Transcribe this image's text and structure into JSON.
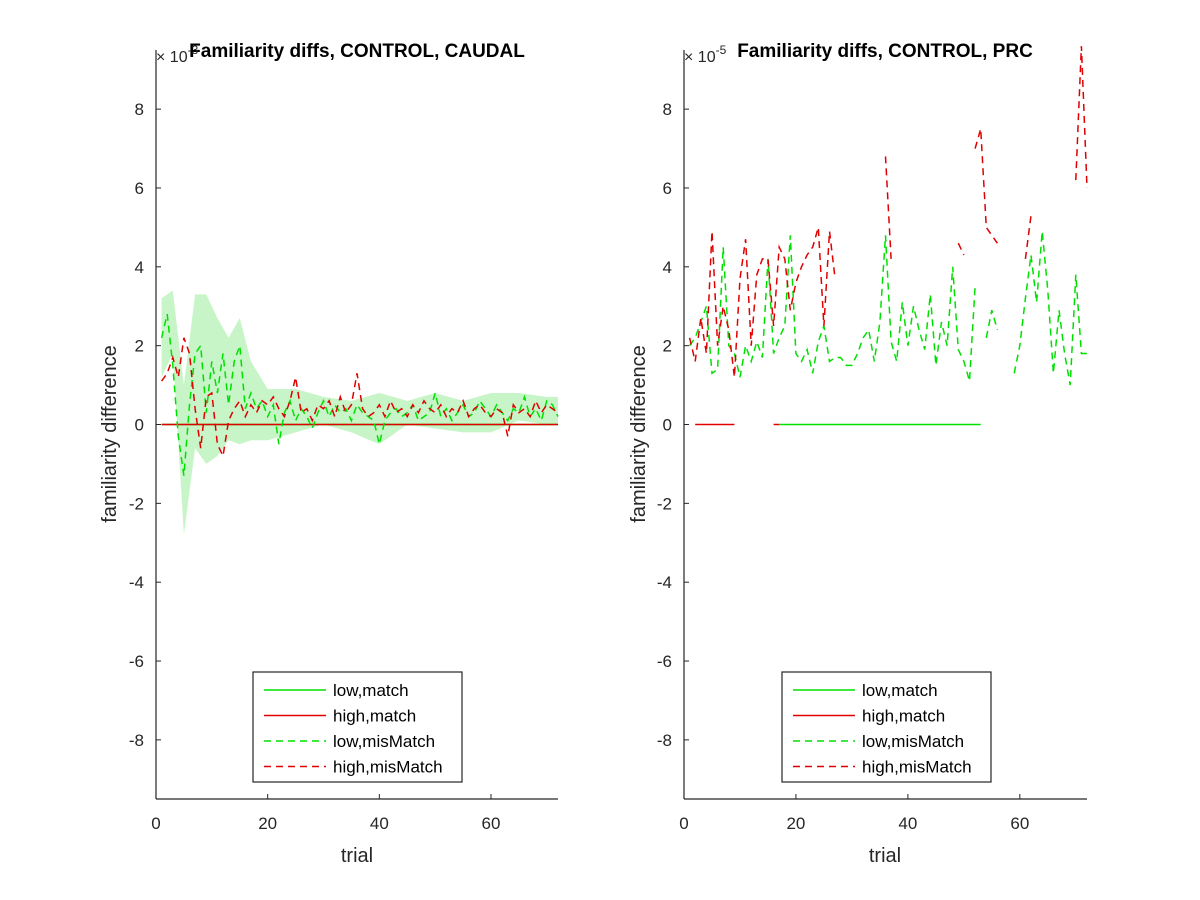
{
  "chart_data": [
    {
      "type": "line",
      "title": "Familiarity diffs, CONTROL, CAUDAL",
      "xlabel": "trial",
      "ylabel": "familiarity difference",
      "xlim": [
        0,
        72
      ],
      "ylim": [
        -9.5,
        9.5
      ],
      "y_exponent_label": "× 10",
      "y_exponent": "-3",
      "xticks": [
        0,
        20,
        40,
        60
      ],
      "yticks": [
        -8,
        -6,
        -4,
        -2,
        0,
        2,
        4,
        6,
        8
      ],
      "grid": false,
      "legend_position": "bottom",
      "shaded_band": {
        "series": "low,misMatch",
        "color": "#c8f5c8",
        "x": [
          1,
          3,
          5,
          7,
          9,
          11,
          13,
          15,
          17,
          20,
          25,
          30,
          35,
          40,
          45,
          50,
          55,
          60,
          65,
          70,
          72
        ],
        "lower": [
          1.2,
          1.8,
          -2.8,
          -0.6,
          -1.0,
          -0.8,
          -0.4,
          -0.5,
          -0.4,
          -0.4,
          -0.2,
          0.0,
          -0.2,
          -0.5,
          0.0,
          -0.1,
          -0.2,
          -0.2,
          0.1,
          0.0,
          0.0
        ],
        "upper": [
          3.2,
          3.4,
          1.0,
          3.3,
          3.3,
          2.7,
          2.2,
          2.7,
          1.6,
          0.9,
          0.9,
          0.7,
          0.6,
          0.8,
          0.6,
          0.8,
          0.6,
          0.8,
          0.8,
          0.7,
          0.7
        ]
      },
      "series": [
        {
          "name": "low,match",
          "color": "#00e000",
          "dash": "solid",
          "x": [
            1,
            72
          ],
          "values": [
            0,
            0
          ]
        },
        {
          "name": "high,match",
          "color": "#e00000",
          "dash": "solid",
          "x": [
            1,
            72
          ],
          "values": [
            0,
            0
          ]
        },
        {
          "name": "low,misMatch",
          "color": "#00e000",
          "dash": "dashed",
          "x": [
            1,
            2,
            3,
            4,
            5,
            6,
            7,
            8,
            9,
            10,
            11,
            12,
            13,
            14,
            15,
            16,
            17,
            18,
            19,
            20,
            21,
            22,
            23,
            24,
            25,
            26,
            27,
            28,
            29,
            30,
            31,
            32,
            33,
            34,
            35,
            36,
            37,
            38,
            39,
            40,
            41,
            42,
            43,
            44,
            45,
            46,
            47,
            48,
            49,
            50,
            51,
            52,
            53,
            54,
            55,
            56,
            57,
            58,
            59,
            60,
            61,
            62,
            63,
            64,
            65,
            66,
            67,
            68,
            69,
            70,
            71,
            72
          ],
          "values": [
            2.2,
            2.8,
            1.5,
            -0.3,
            -1.3,
            0.5,
            1.8,
            2.0,
            0.3,
            1.6,
            0.8,
            1.8,
            0.5,
            1.6,
            2.0,
            0.4,
            0.8,
            0.4,
            0.6,
            0.2,
            0.5,
            -0.5,
            0.3,
            0.6,
            0.1,
            0.4,
            0.2,
            -0.1,
            0.3,
            0.6,
            0.2,
            0.5,
            0.3,
            0.4,
            0.1,
            0.5,
            0.3,
            0.2,
            0.1,
            -0.5,
            0.1,
            0.3,
            0.4,
            0.2,
            0.3,
            0.5,
            0.1,
            0.2,
            0.3,
            0.8,
            0.2,
            0.4,
            0.1,
            0.3,
            0.5,
            0.2,
            0.3,
            0.6,
            0.4,
            0.2,
            0.5,
            0.3,
            0.1,
            0.4,
            0.3,
            0.7,
            0.2,
            0.4,
            0.1,
            0.6,
            0.5,
            0.2
          ]
        },
        {
          "name": "high,misMatch",
          "color": "#e00000",
          "dash": "dashed",
          "x": [
            1,
            2,
            3,
            4,
            5,
            6,
            7,
            8,
            9,
            10,
            11,
            12,
            13,
            14,
            15,
            16,
            17,
            18,
            19,
            20,
            21,
            22,
            23,
            24,
            25,
            26,
            27,
            28,
            29,
            30,
            31,
            32,
            33,
            34,
            35,
            36,
            37,
            38,
            39,
            40,
            41,
            42,
            43,
            44,
            45,
            46,
            47,
            48,
            49,
            50,
            51,
            52,
            53,
            54,
            55,
            56,
            57,
            58,
            59,
            60,
            61,
            62,
            63,
            64,
            65,
            66,
            67,
            68,
            69,
            70,
            71,
            72
          ],
          "values": [
            1.1,
            1.3,
            1.7,
            1.2,
            2.2,
            1.8,
            0.4,
            -0.6,
            0.7,
            0.8,
            -0.5,
            -0.8,
            0.1,
            0.4,
            0.6,
            0.2,
            0.5,
            0.3,
            0.6,
            0.5,
            0.7,
            0.4,
            0.2,
            0.6,
            1.2,
            0.3,
            0.4,
            0.1,
            0.5,
            0.4,
            0.6,
            0.2,
            0.7,
            0.3,
            0.5,
            1.3,
            0.4,
            0.2,
            0.3,
            0.5,
            0.2,
            0.6,
            0.3,
            0.4,
            0.2,
            0.5,
            0.3,
            0.6,
            0.4,
            0.3,
            0.5,
            0.2,
            0.4,
            0.3,
            0.6,
            0.2,
            0.4,
            0.5,
            0.3,
            0.2,
            0.4,
            0.3,
            -0.3,
            0.5,
            0.3,
            0.4,
            0.2,
            0.6,
            0.3,
            0.5,
            0.4,
            0.3
          ]
        }
      ]
    },
    {
      "type": "line",
      "title": "Familiarity diffs, CONTROL, PRC",
      "xlabel": "trial",
      "ylabel": "familiarity difference",
      "xlim": [
        0,
        72
      ],
      "ylim": [
        -9.5,
        9.5
      ],
      "y_exponent_label": "× 10",
      "y_exponent": "-5",
      "xticks": [
        0,
        20,
        40,
        60
      ],
      "yticks": [
        -8,
        -6,
        -4,
        -2,
        0,
        2,
        4,
        6,
        8
      ],
      "grid": false,
      "legend_position": "bottom",
      "series": [
        {
          "name": "low,match",
          "color": "#00e000",
          "dash": "solid",
          "segments": [
            [
              [
                17,
                0
              ],
              [
                53,
                0
              ]
            ]
          ]
        },
        {
          "name": "high,match",
          "color": "#e00000",
          "dash": "solid",
          "segments": [
            [
              [
                2,
                0
              ],
              [
                9,
                0
              ]
            ],
            [
              [
                16,
                0
              ],
              [
                17,
                0
              ]
            ]
          ]
        },
        {
          "name": "low,misMatch",
          "color": "#00e000",
          "dash": "dashed",
          "segments": [
            [
              [
                1,
                2.0
              ],
              [
                2,
                2.2
              ],
              [
                3,
                2.6
              ],
              [
                4,
                3.0
              ],
              [
                5,
                1.3
              ],
              [
                6,
                1.4
              ],
              [
                7,
                4.5
              ],
              [
                8,
                2.0
              ],
              [
                9,
                1.8
              ],
              [
                10,
                1.2
              ],
              [
                11,
                2.0
              ],
              [
                12,
                1.6
              ],
              [
                13,
                2.1
              ],
              [
                14,
                1.7
              ],
              [
                15,
                4.2
              ],
              [
                16,
                1.8
              ],
              [
                17,
                2.2
              ],
              [
                18,
                2.5
              ],
              [
                19,
                4.8
              ],
              [
                20,
                1.8
              ],
              [
                21,
                1.6
              ],
              [
                22,
                1.9
              ],
              [
                23,
                1.3
              ],
              [
                24,
                2.1
              ],
              [
                25,
                2.5
              ],
              [
                26,
                1.6
              ],
              [
                27,
                1.7
              ],
              [
                28,
                1.7
              ],
              [
                29,
                1.5
              ],
              [
                30,
                1.5
              ],
              [
                31,
                1.8
              ],
              [
                32,
                2.2
              ],
              [
                33,
                2.4
              ],
              [
                34,
                1.6
              ],
              [
                35,
                2.6
              ],
              [
                36,
                4.8
              ],
              [
                37,
                2.1
              ],
              [
                38,
                1.6
              ],
              [
                39,
                3.1
              ],
              [
                40,
                2.0
              ],
              [
                41,
                3.0
              ],
              [
                42,
                2.4
              ],
              [
                43,
                1.9
              ],
              [
                44,
                3.3
              ],
              [
                45,
                1.5
              ],
              [
                46,
                2.6
              ],
              [
                47,
                2.0
              ],
              [
                48,
                4.0
              ],
              [
                49,
                1.9
              ],
              [
                50,
                1.6
              ],
              [
                51,
                1.1
              ],
              [
                52,
                3.5
              ]
            ],
            [
              [
                54,
                2.2
              ],
              [
                55,
                2.9
              ],
              [
                56,
                2.4
              ]
            ],
            [
              [
                59,
                1.3
              ],
              [
                60,
                2.0
              ],
              [
                61,
                3.2
              ],
              [
                62,
                4.3
              ],
              [
                63,
                3.1
              ],
              [
                64,
                4.9
              ],
              [
                65,
                3.4
              ],
              [
                66,
                1.3
              ],
              [
                67,
                2.9
              ],
              [
                68,
                1.8
              ],
              [
                69,
                1.0
              ],
              [
                70,
                3.8
              ],
              [
                71,
                1.8
              ],
              [
                72,
                1.8
              ]
            ]
          ]
        },
        {
          "name": "high,misMatch",
          "color": "#e00000",
          "dash": "dashed",
          "segments": [
            [
              [
                1,
                2.2
              ],
              [
                2,
                1.6
              ],
              [
                3,
                2.7
              ],
              [
                4,
                1.8
              ],
              [
                5,
                4.9
              ],
              [
                6,
                2.0
              ],
              [
                7,
                3.0
              ],
              [
                8,
                2.4
              ],
              [
                9,
                1.2
              ],
              [
                10,
                3.7
              ],
              [
                11,
                4.7
              ],
              [
                12,
                2.0
              ],
              [
                13,
                3.8
              ],
              [
                14,
                4.2
              ],
              [
                15,
                4.2
              ],
              [
                16,
                2.5
              ],
              [
                17,
                4.5
              ],
              [
                18,
                4.2
              ],
              [
                19,
                2.9
              ],
              [
                20,
                3.6
              ],
              [
                21,
                4.0
              ],
              [
                22,
                4.3
              ],
              [
                23,
                4.5
              ],
              [
                24,
                5.0
              ],
              [
                25,
                2.5
              ],
              [
                26,
                4.9
              ],
              [
                27,
                3.7
              ]
            ],
            [
              [
                36,
                6.8
              ],
              [
                37,
                4.2
              ]
            ],
            [
              [
                49,
                4.6
              ],
              [
                50,
                4.3
              ]
            ],
            [
              [
                52,
                7.0
              ],
              [
                53,
                7.5
              ],
              [
                54,
                5.0
              ],
              [
                55,
                4.8
              ],
              [
                56,
                4.6
              ]
            ],
            [
              [
                61,
                4.2
              ],
              [
                62,
                5.3
              ]
            ],
            [
              [
                70,
                6.2
              ],
              [
                71,
                9.6
              ],
              [
                72,
                6.0
              ]
            ]
          ]
        }
      ]
    }
  ]
}
